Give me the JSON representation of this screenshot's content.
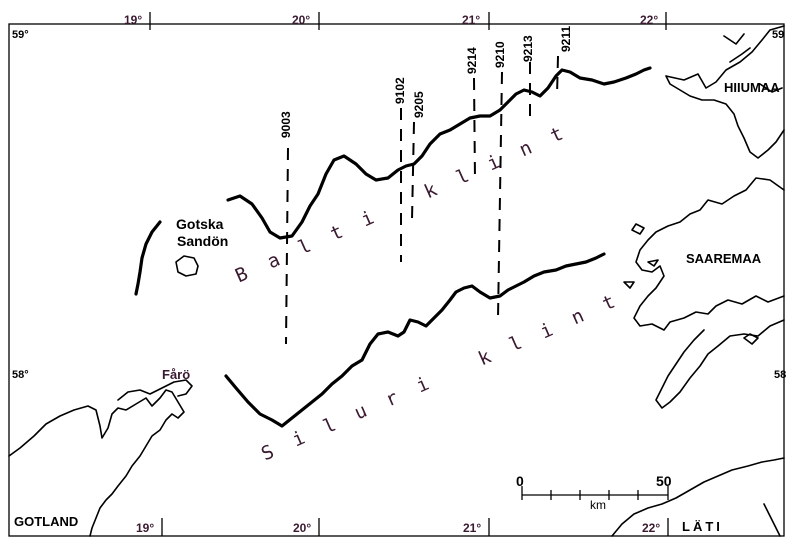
{
  "map": {
    "longitude_labels_top": [
      "19°",
      "20°",
      "21°",
      "22°"
    ],
    "longitude_labels_bottom": [
      "19°",
      "20°",
      "21°",
      "22°"
    ],
    "latitude_labels_left": [
      "59°",
      "58°"
    ],
    "latitude_labels_right": [
      "59",
      "58"
    ],
    "regions": {
      "hiiumaa": "HIIUMAA",
      "saaremaa": "SAAREMAA",
      "gotland": "GOTLAND",
      "gotska_sandon_line1": "Gotska",
      "gotska_sandon_line2": "Sandön",
      "faro": "Fårö",
      "lati": "LÄTI"
    },
    "features": {
      "balti_klint": "Balti klint",
      "siluri_klint": "Siluri klint"
    },
    "profiles": [
      "9003",
      "9102",
      "9205",
      "9214",
      "9210",
      "9213",
      "9211"
    ],
    "scale": {
      "start": "0",
      "end": "50",
      "unit": "km"
    }
  }
}
